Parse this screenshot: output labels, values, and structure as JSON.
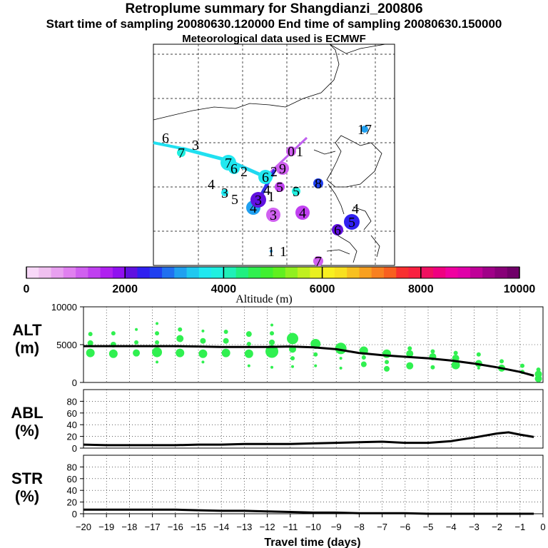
{
  "header": {
    "title": "Retroplume summary for Shangdianzi_200806",
    "sampling": "Start time of sampling 20080630.120000     End time of sampling 20080630.150000",
    "met": "Meteorological data used is ECMWF"
  },
  "colorbar": {
    "label": "Altitude (m)",
    "ticks": [
      "0",
      "2000",
      "4000",
      "6000",
      "8000",
      "10000"
    ],
    "range": [
      0,
      10000
    ],
    "colors": [
      "#f8d8f8",
      "#f0c0f0",
      "#e8a0f0",
      "#e080f0",
      "#d060f0",
      "#c040f0",
      "#b020f0",
      "#9010f0",
      "#6010e0",
      "#3020f0",
      "#2040f0",
      "#2070f0",
      "#20a0f0",
      "#20c8f0",
      "#20e8f0",
      "#20f0e0",
      "#20f0b8",
      "#20f080",
      "#30f050",
      "#40f030",
      "#60f020",
      "#90f020",
      "#c0f020",
      "#e8f020",
      "#f8f020",
      "#f8e020",
      "#f8c020",
      "#f8a020",
      "#f88020",
      "#f86020",
      "#f83030",
      "#f82040",
      "#f01060",
      "#f00080",
      "#f000a0",
      "#e000a8",
      "#c00098",
      "#a00088",
      "#880078",
      "#700068"
    ]
  },
  "map": {
    "markers": [
      {
        "label": "6",
        "lx": 232,
        "ly": 193,
        "alt": 3800,
        "r": 0
      },
      {
        "label": "7",
        "lx": 254,
        "ly": 214,
        "alt": 3800,
        "r": 6
      },
      {
        "label": "3",
        "lx": 274,
        "ly": 203,
        "alt": 3800,
        "r": 0
      },
      {
        "label": "7",
        "lx": 320,
        "ly": 228,
        "alt": 3700,
        "r": 11
      },
      {
        "label": "6",
        "lx": 328,
        "ly": 236,
        "alt": 3600,
        "r": 8
      },
      {
        "label": "2",
        "lx": 342,
        "ly": 240,
        "alt": 3500,
        "r": 0
      },
      {
        "label": "4",
        "lx": 296,
        "ly": 258,
        "alt": 3400,
        "r": 0
      },
      {
        "label": "3",
        "lx": 315,
        "ly": 270,
        "alt": 3500,
        "r": 5
      },
      {
        "label": "5",
        "lx": 329,
        "ly": 279,
        "alt": 3700,
        "r": 0
      },
      {
        "label": "6",
        "lx": 372,
        "ly": 248,
        "alt": 3700,
        "r": 10
      },
      {
        "label": "2",
        "lx": 384,
        "ly": 240,
        "alt": 800,
        "r": 0
      },
      {
        "label": "9",
        "lx": 396,
        "ly": 236,
        "alt": 1200,
        "r": 9
      },
      {
        "label": "0",
        "lx": 408,
        "ly": 212,
        "alt": 1000,
        "r": 7
      },
      {
        "label": "1",
        "lx": 420,
        "ly": 212,
        "alt": 1000,
        "r": 0
      },
      {
        "label": "5",
        "lx": 392,
        "ly": 262,
        "alt": 1400,
        "r": 7
      },
      {
        "label": "5",
        "lx": 415,
        "ly": 268,
        "alt": 3900,
        "r": 6
      },
      {
        "label": "8",
        "lx": 446,
        "ly": 257,
        "alt": 2600,
        "r": 7
      },
      {
        "label": "4",
        "lx": 355,
        "ly": 291,
        "alt": 3200,
        "r": 10
      },
      {
        "label": "3",
        "lx": 362,
        "ly": 280,
        "alt": 2200,
        "r": 11
      },
      {
        "label": "1",
        "lx": 380,
        "ly": 275,
        "alt": 2600,
        "r": 0
      },
      {
        "label": "4",
        "lx": 374,
        "ly": 266,
        "alt": 2400,
        "r": 0
      },
      {
        "label": "3",
        "lx": 383,
        "ly": 301,
        "alt": 1200,
        "r": 10
      },
      {
        "label": "4",
        "lx": 424,
        "ly": 298,
        "alt": 1300,
        "r": 10
      },
      {
        "label": "4",
        "lx": 498,
        "ly": 292,
        "alt": 3000,
        "r": 0
      },
      {
        "label": "5",
        "lx": 493,
        "ly": 311,
        "alt": 2300,
        "r": 11
      },
      {
        "label": "6",
        "lx": 473,
        "ly": 322,
        "alt": 2200,
        "r": 8
      },
      {
        "label": "1",
        "lx": 380,
        "ly": 352,
        "alt": 3000,
        "r": 2
      },
      {
        "label": "1",
        "lx": 397,
        "ly": 352,
        "alt": 3000,
        "r": 0
      },
      {
        "label": "17",
        "lx": 511,
        "ly": 181,
        "alt": 3000,
        "r": 5
      },
      {
        "label": "7",
        "lx": 446,
        "ly": 366,
        "alt": 1100,
        "r": 7
      }
    ]
  },
  "chart_data": [
    {
      "type": "scatter",
      "name": "ALT",
      "ylabel": "ALT\n(m)",
      "ylabel_line1": "ALT",
      "ylabel_line2": "(m)",
      "ylim": [
        0,
        10000
      ],
      "yticks": [
        "0",
        "5000",
        "10000"
      ],
      "ytick_values": [
        0,
        5000,
        10000
      ],
      "xlim": [
        -20,
        0
      ],
      "line_x": [
        -20,
        -19,
        -18,
        -17,
        -16,
        -15,
        -14,
        -13,
        -12,
        -11,
        -10,
        -9,
        -8,
        -7,
        -6,
        -5,
        -4,
        -3,
        -2,
        -1,
        -0.4
      ],
      "line_y": [
        4800,
        4800,
        4800,
        4800,
        4800,
        4750,
        4700,
        4700,
        4700,
        4750,
        4650,
        4400,
        3900,
        3600,
        3400,
        3200,
        2900,
        2500,
        2000,
        1400,
        900
      ],
      "points": [
        {
          "x": -19.7,
          "y": 3900,
          "s": 6
        },
        {
          "x": -19.7,
          "y": 5200,
          "s": 4
        },
        {
          "x": -19.7,
          "y": 6400,
          "s": 3
        },
        {
          "x": -18.7,
          "y": 3800,
          "s": 6
        },
        {
          "x": -18.7,
          "y": 5000,
          "s": 4
        },
        {
          "x": -18.7,
          "y": 6500,
          "s": 3
        },
        {
          "x": -17.7,
          "y": 3900,
          "s": 5
        },
        {
          "x": -17.7,
          "y": 5300,
          "s": 3
        },
        {
          "x": -17.7,
          "y": 7000,
          "s": 2
        },
        {
          "x": -16.8,
          "y": 4000,
          "s": 7
        },
        {
          "x": -16.8,
          "y": 5300,
          "s": 3
        },
        {
          "x": -16.8,
          "y": 6500,
          "s": 3
        },
        {
          "x": -16.8,
          "y": 2700,
          "s": 2
        },
        {
          "x": -16.8,
          "y": 7800,
          "s": 2
        },
        {
          "x": -15.8,
          "y": 3900,
          "s": 6
        },
        {
          "x": -15.8,
          "y": 5800,
          "s": 5
        },
        {
          "x": -15.8,
          "y": 7000,
          "s": 3
        },
        {
          "x": -14.8,
          "y": 3800,
          "s": 6
        },
        {
          "x": -14.8,
          "y": 5500,
          "s": 4
        },
        {
          "x": -14.8,
          "y": 6800,
          "s": 2
        },
        {
          "x": -14.8,
          "y": 2700,
          "s": 2
        },
        {
          "x": -13.8,
          "y": 3900,
          "s": 6
        },
        {
          "x": -13.8,
          "y": 5500,
          "s": 4
        },
        {
          "x": -13.8,
          "y": 6700,
          "s": 3
        },
        {
          "x": -12.8,
          "y": 3800,
          "s": 6
        },
        {
          "x": -12.8,
          "y": 5100,
          "s": 3
        },
        {
          "x": -12.8,
          "y": 6400,
          "s": 4
        },
        {
          "x": -12.8,
          "y": 2200,
          "s": 2
        },
        {
          "x": -11.8,
          "y": 4100,
          "s": 9
        },
        {
          "x": -11.8,
          "y": 5300,
          "s": 4
        },
        {
          "x": -11.8,
          "y": 6500,
          "s": 3
        },
        {
          "x": -11.8,
          "y": 7600,
          "s": 2
        },
        {
          "x": -11.8,
          "y": 2000,
          "s": 2
        },
        {
          "x": -10.9,
          "y": 5800,
          "s": 8
        },
        {
          "x": -10.9,
          "y": 4400,
          "s": 5
        },
        {
          "x": -10.9,
          "y": 3200,
          "s": 3
        },
        {
          "x": -10.9,
          "y": 2100,
          "s": 2
        },
        {
          "x": -9.9,
          "y": 5100,
          "s": 7
        },
        {
          "x": -9.9,
          "y": 3700,
          "s": 3
        },
        {
          "x": -9.9,
          "y": 2200,
          "s": 2
        },
        {
          "x": -8.8,
          "y": 4500,
          "s": 8
        },
        {
          "x": -8.8,
          "y": 3200,
          "s": 2
        },
        {
          "x": -8.8,
          "y": 1900,
          "s": 2
        },
        {
          "x": -7.8,
          "y": 4200,
          "s": 6
        },
        {
          "x": -7.8,
          "y": 3300,
          "s": 3
        },
        {
          "x": -7.8,
          "y": 2400,
          "s": 4
        },
        {
          "x": -6.8,
          "y": 3800,
          "s": 6
        },
        {
          "x": -6.8,
          "y": 1800,
          "s": 4
        },
        {
          "x": -6.8,
          "y": 2700,
          "s": 3
        },
        {
          "x": -5.8,
          "y": 3800,
          "s": 5
        },
        {
          "x": -5.8,
          "y": 4500,
          "s": 3
        },
        {
          "x": -5.8,
          "y": 2200,
          "s": 5
        },
        {
          "x": -4.8,
          "y": 3400,
          "s": 5
        },
        {
          "x": -4.8,
          "y": 4100,
          "s": 3
        },
        {
          "x": -4.8,
          "y": 2000,
          "s": 3
        },
        {
          "x": -3.8,
          "y": 3200,
          "s": 5
        },
        {
          "x": -3.8,
          "y": 2300,
          "s": 6
        },
        {
          "x": -3.8,
          "y": 3900,
          "s": 3
        },
        {
          "x": -2.8,
          "y": 2500,
          "s": 5
        },
        {
          "x": -2.8,
          "y": 1900,
          "s": 2
        },
        {
          "x": -2.8,
          "y": 3700,
          "s": 3
        },
        {
          "x": -1.8,
          "y": 1900,
          "s": 5
        },
        {
          "x": -1.8,
          "y": 2800,
          "s": 3
        },
        {
          "x": -0.9,
          "y": 1400,
          "s": 3
        },
        {
          "x": -0.9,
          "y": 2200,
          "s": 3
        },
        {
          "x": -0.2,
          "y": 1100,
          "s": 5
        },
        {
          "x": -0.2,
          "y": 500,
          "s": 5
        },
        {
          "x": -0.2,
          "y": 1700,
          "s": 3
        }
      ]
    },
    {
      "type": "line",
      "name": "ABL",
      "ylabel_line1": "ABL",
      "ylabel_line2": "(%)",
      "ylim": [
        0,
        100
      ],
      "yticks": [
        "0",
        "20",
        "40",
        "60",
        "80"
      ],
      "ytick_values": [
        0,
        20,
        40,
        60,
        80
      ],
      "xlim": [
        -20,
        0
      ],
      "x": [
        -20,
        -19,
        -18,
        -17,
        -16,
        -15,
        -14,
        -13,
        -12,
        -11,
        -10,
        -9,
        -8,
        -7,
        -6,
        -5,
        -4,
        -3,
        -2,
        -1.5,
        -1,
        -0.4
      ],
      "y": [
        6,
        5,
        5,
        5,
        5,
        6,
        6,
        7,
        7,
        7,
        8,
        9,
        10,
        11,
        9,
        9,
        12,
        18,
        25,
        27,
        23,
        19
      ]
    },
    {
      "type": "line",
      "name": "STR",
      "ylabel_line1": "STR",
      "ylabel_line2": "(%)",
      "ylim": [
        0,
        100
      ],
      "yticks": [
        "0",
        "20",
        "40",
        "60",
        "80"
      ],
      "ytick_values": [
        0,
        20,
        40,
        60,
        80
      ],
      "xlim": [
        -20,
        0
      ],
      "xlabel": "Travel time (days)",
      "xticks": [
        "−20",
        "−19",
        "−18",
        "−17",
        "−16",
        "−15",
        "−14",
        "−13",
        "−12",
        "−11",
        "−10",
        "−9",
        "−8",
        "−7",
        "−6",
        "−5",
        "−4",
        "−3",
        "−2",
        "−1",
        "0"
      ],
      "xtick_values": [
        -20,
        -19,
        -18,
        -17,
        -16,
        -15,
        -14,
        -13,
        -12,
        -11,
        -10,
        -9,
        -8,
        -7,
        -6,
        -5,
        -4,
        -3,
        -2,
        -1,
        0
      ],
      "x": [
        -20,
        -19,
        -18,
        -17,
        -16,
        -15,
        -14,
        -13,
        -12,
        -11,
        -10,
        -9,
        -8,
        -7,
        -6,
        -5,
        -4,
        -3,
        -2,
        -1,
        -0.4
      ],
      "y": [
        7,
        7,
        7,
        7,
        7,
        6,
        5,
        5,
        4,
        3,
        2,
        2,
        1,
        1,
        1,
        0,
        0,
        0,
        0,
        0,
        0
      ]
    }
  ]
}
